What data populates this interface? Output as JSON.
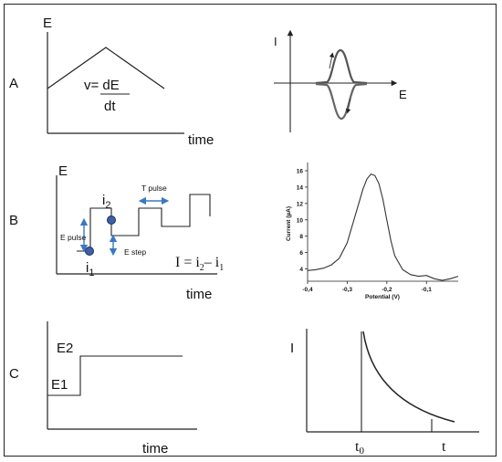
{
  "panels": {
    "A": {
      "row_label": "A",
      "e_axis": "E",
      "time_axis": "time",
      "formula_top": "v= dE",
      "formula_bottom": "dt",
      "cv_i_axis": "I",
      "cv_e_axis": "E"
    },
    "B": {
      "row_label": "B",
      "e_axis": "E",
      "time_axis": "time",
      "i2_base": "i",
      "i2_sub": "2",
      "i1_base": "i",
      "i1_sub": "1",
      "t_pulse": "T pulse",
      "e_pulse": "E pulse",
      "e_step": "E step",
      "formula": {
        "lhs": "I = i",
        "s2": "2",
        "mid": "– i",
        "s1": "1"
      }
    },
    "C": {
      "row_label": "C",
      "e1": "E1",
      "e2": "E2",
      "time_axis": "time",
      "i_axis": "I",
      "t0_base": "t",
      "t0_sub": "0",
      "t_label": "t"
    }
  },
  "chart_data": {
    "type": "line",
    "title": "",
    "xlabel": "Potential (V)",
    "ylabel": "Current (µA)",
    "xlim": [
      -0.4,
      -0.02
    ],
    "ylim": [
      2.5,
      17
    ],
    "xticks": [
      -0.4,
      -0.3,
      -0.2,
      -0.1
    ],
    "xtick_labels": [
      "-0,4",
      "-0,3",
      "-0,2",
      "-0,1"
    ],
    "yticks": [
      4,
      6,
      8,
      10,
      12,
      14,
      16
    ],
    "yticks_labels": [
      "4",
      "6",
      "8",
      "10",
      "12",
      "14",
      "16"
    ],
    "grid": false,
    "series": [
      {
        "x": [
          -0.4,
          -0.38,
          -0.36,
          -0.34,
          -0.32,
          -0.3,
          -0.28,
          -0.26,
          -0.25,
          -0.24,
          -0.23,
          -0.22,
          -0.21,
          -0.2,
          -0.19,
          -0.18,
          -0.16,
          -0.14,
          -0.12,
          -0.1,
          -0.08,
          -0.06,
          -0.04,
          -0.02
        ],
        "y": [
          3.8,
          3.9,
          4.1,
          4.5,
          5.3,
          7.2,
          10.5,
          13.8,
          15.0,
          15.6,
          15.4,
          14.4,
          12.5,
          10.0,
          7.5,
          5.6,
          3.9,
          3.3,
          3.1,
          3.2,
          2.8,
          2.6,
          2.8,
          3.1
        ]
      }
    ]
  }
}
